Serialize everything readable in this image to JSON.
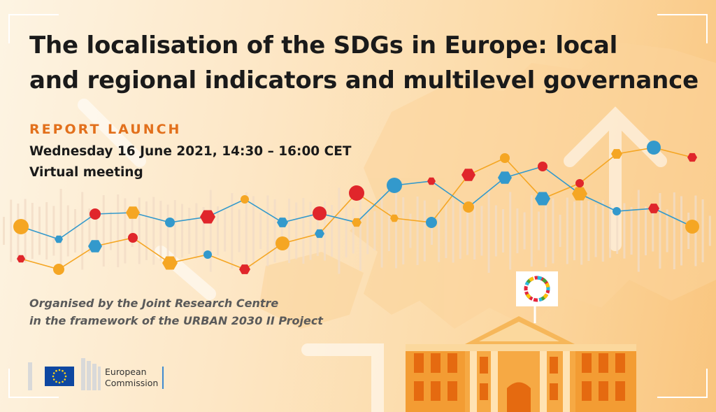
{
  "title_lines": [
    "The localisation of the SDGs in Europe: local",
    "and regional indicators and multilevel governance"
  ],
  "event_type": "REPORT LAUNCH",
  "date_time": "Wednesday 16 June 2021, 14:30 – 16:00 CET",
  "venue": "Virtual meeting",
  "organiser_lines": [
    "Organised by the Joint Research Centre",
    "in the framework of the URBAN 2030 II Project"
  ],
  "logo": {
    "line1": "European",
    "line2": "Commission"
  },
  "colors": {
    "accent_orange": "#e2701c",
    "marker_orange": "#f5a623",
    "marker_red": "#e0262b",
    "marker_blue": "#3399cc",
    "building": "#f39c33",
    "eu_blue": "#0e47a1",
    "eu_star": "#ffd617"
  },
  "icons": [
    "sdg-wheel-icon",
    "eu-flag-icon",
    "up-arrow-icon"
  ]
}
